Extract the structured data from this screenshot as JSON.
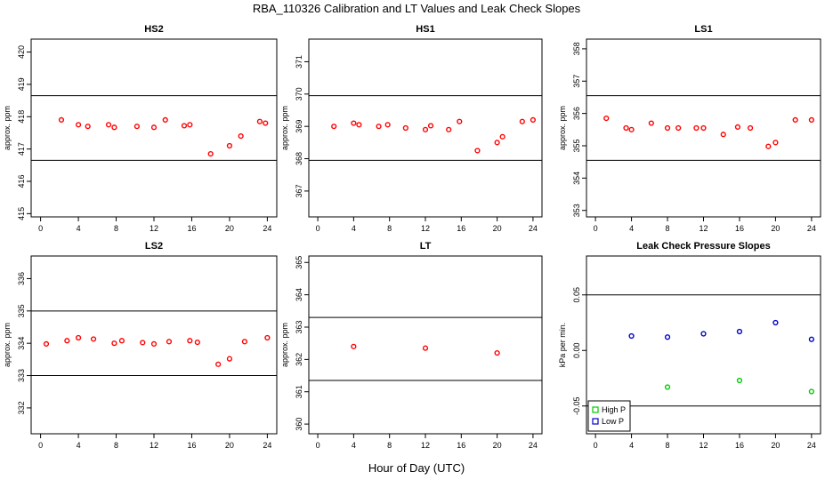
{
  "figure": {
    "title": "RBA_110326  Calibration and LT Values and Leak Check Slopes",
    "xlabel": "Hour of Day (UTC)"
  },
  "chart_data": [
    {
      "type": "scatter",
      "title": "HS2",
      "ylabel": "approx. ppm",
      "xlim": [
        -1,
        25
      ],
      "ylim": [
        414.9,
        420.4
      ],
      "xticks": [
        0,
        4,
        8,
        12,
        16,
        20,
        24
      ],
      "xtick_labels": [
        "0",
        "4",
        "8",
        "12",
        "16",
        "20",
        "24"
      ],
      "yticks": [
        415,
        416,
        417,
        418,
        419,
        420
      ],
      "ytick_labels": [
        "415",
        "416",
        "417",
        "418",
        "419",
        "420"
      ],
      "hlines": [
        416.65,
        418.65
      ],
      "series": [
        {
          "name": "HS2",
          "color": "#ff0000",
          "x": [
            2.2,
            4,
            5,
            7.2,
            7.8,
            10.2,
            12,
            13.2,
            15.2,
            15.8,
            18,
            20,
            21.2,
            23.2,
            23.8
          ],
          "y": [
            417.9,
            417.75,
            417.7,
            417.75,
            417.67,
            417.7,
            417.67,
            417.9,
            417.72,
            417.75,
            416.85,
            417.1,
            417.4,
            417.85,
            417.8
          ]
        }
      ]
    },
    {
      "type": "scatter",
      "title": "HS1",
      "ylabel": "approx. ppm",
      "xlim": [
        -1,
        25
      ],
      "ylim": [
        366.2,
        371.7
      ],
      "xticks": [
        0,
        4,
        8,
        12,
        16,
        20,
        24
      ],
      "xtick_labels": [
        "0",
        "4",
        "8",
        "12",
        "16",
        "20",
        "24"
      ],
      "yticks": [
        367,
        368,
        369,
        370,
        371
      ],
      "ytick_labels": [
        "367",
        "368",
        "369",
        "370",
        "371"
      ],
      "hlines": [
        367.95,
        369.95
      ],
      "series": [
        {
          "name": "HS1",
          "color": "#ff0000",
          "x": [
            1.8,
            4,
            4.6,
            6.8,
            7.8,
            9.8,
            12,
            12.6,
            14.6,
            15.8,
            17.8,
            20,
            20.6,
            22.8,
            24
          ],
          "y": [
            369,
            369.1,
            369.05,
            369,
            369.05,
            368.95,
            368.9,
            369.02,
            368.9,
            369.15,
            368.25,
            368.5,
            368.68,
            369.15,
            369.2
          ]
        }
      ]
    },
    {
      "type": "scatter",
      "title": "LS1",
      "ylabel": "approx. ppm",
      "xlim": [
        -1,
        25
      ],
      "ylim": [
        352.8,
        358.3
      ],
      "xticks": [
        0,
        4,
        8,
        12,
        16,
        20,
        24
      ],
      "xtick_labels": [
        "0",
        "4",
        "8",
        "12",
        "16",
        "20",
        "24"
      ],
      "yticks": [
        353,
        354,
        355,
        356,
        357,
        358
      ],
      "ytick_labels": [
        "353",
        "354",
        "355",
        "356",
        "357",
        "358"
      ],
      "hlines": [
        354.55,
        356.55
      ],
      "series": [
        {
          "name": "LS1",
          "color": "#ff0000",
          "x": [
            1.2,
            3.4,
            4,
            6.2,
            8,
            9.2,
            11.2,
            12,
            14.2,
            15.8,
            17.2,
            19.2,
            20,
            22.2,
            24
          ],
          "y": [
            355.85,
            355.55,
            355.5,
            355.7,
            355.55,
            355.55,
            355.55,
            355.55,
            355.35,
            355.58,
            355.55,
            354.98,
            355.1,
            355.8,
            355.8
          ]
        }
      ]
    },
    {
      "type": "scatter",
      "title": "LS2",
      "ylabel": "approx. ppm",
      "xlim": [
        -1,
        25
      ],
      "ylim": [
        331.2,
        336.7
      ],
      "xticks": [
        0,
        4,
        8,
        12,
        16,
        20,
        24
      ],
      "xtick_labels": [
        "0",
        "4",
        "8",
        "12",
        "16",
        "20",
        "24"
      ],
      "yticks": [
        332,
        333,
        334,
        335,
        336
      ],
      "ytick_labels": [
        "332",
        "333",
        "334",
        "335",
        "336"
      ],
      "hlines": [
        333.0,
        335.0
      ],
      "series": [
        {
          "name": "LS2",
          "color": "#ff0000",
          "x": [
            0.6,
            2.8,
            4,
            5.6,
            7.8,
            8.6,
            10.8,
            12,
            13.6,
            15.8,
            16.6,
            18.8,
            20,
            21.6,
            24
          ],
          "y": [
            333.98,
            334.08,
            334.17,
            334.13,
            334.0,
            334.08,
            334.02,
            333.98,
            334.05,
            334.08,
            334.03,
            333.35,
            333.52,
            334.05,
            334.17
          ]
        }
      ]
    },
    {
      "type": "scatter",
      "title": "LT",
      "ylabel": "approx. ppm",
      "xlim": [
        -1,
        25
      ],
      "ylim": [
        359.7,
        365.2
      ],
      "xticks": [
        0,
        4,
        8,
        12,
        16,
        20,
        24
      ],
      "xtick_labels": [
        "0",
        "4",
        "8",
        "12",
        "16",
        "20",
        "24"
      ],
      "yticks": [
        360,
        361,
        362,
        363,
        364,
        365
      ],
      "ytick_labels": [
        "360",
        "361",
        "362",
        "363",
        "364",
        "365"
      ],
      "hlines": [
        361.35,
        363.3
      ],
      "series": [
        {
          "name": "LT",
          "color": "#ff0000",
          "x": [
            4,
            12,
            20
          ],
          "y": [
            362.4,
            362.35,
            362.2
          ]
        }
      ]
    },
    {
      "type": "scatter",
      "title": "Leak Check Pressure Slopes",
      "ylabel": "kPa per min.",
      "xlim": [
        -1,
        25
      ],
      "ylim": [
        -0.075,
        0.085
      ],
      "xticks": [
        0,
        4,
        8,
        12,
        16,
        20,
        24
      ],
      "xtick_labels": [
        "0",
        "4",
        "8",
        "12",
        "16",
        "20",
        "24"
      ],
      "yticks": [
        -0.05,
        0,
        0.05
      ],
      "ytick_labels": [
        "-0.05",
        "0.00",
        "0.05"
      ],
      "hlines": [
        -0.05,
        0.05
      ],
      "legend": {
        "position": "bottom-left"
      },
      "series": [
        {
          "name": "High P",
          "color": "#00cc00",
          "x": [
            8,
            16,
            24
          ],
          "y": [
            -0.033,
            -0.027,
            -0.037
          ]
        },
        {
          "name": "Low P",
          "color": "#0000cc",
          "x": [
            4,
            8,
            12,
            16,
            20,
            24
          ],
          "y": [
            0.013,
            0.012,
            0.015,
            0.017,
            0.025,
            0.01
          ]
        }
      ]
    }
  ]
}
